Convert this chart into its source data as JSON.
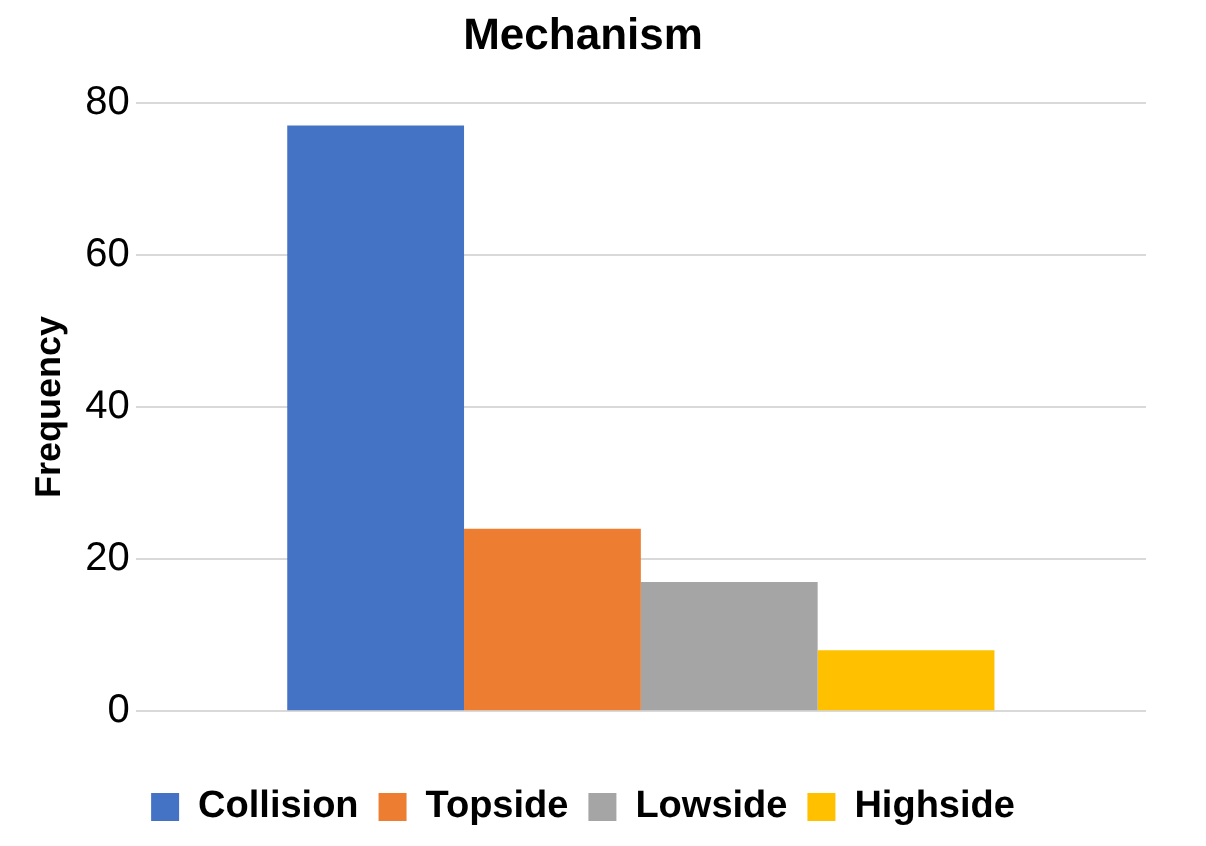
{
  "chart_data": {
    "type": "bar",
    "title": "Mechanism",
    "ylabel": "Frequency",
    "categories": [
      null
    ],
    "series": [
      {
        "name": "Collision",
        "color": "#4472c4",
        "values": [
          77
        ]
      },
      {
        "name": "Topside",
        "color": "#ed7d31",
        "values": [
          24
        ]
      },
      {
        "name": "Lowside",
        "color": "#a5a5a5",
        "values": [
          17
        ]
      },
      {
        "name": "Highside",
        "color": "#ffc000",
        "values": [
          8
        ]
      }
    ],
    "ylim": [
      0,
      80
    ],
    "yticks": [
      0,
      20,
      40,
      60,
      80
    ],
    "grid": "y",
    "legend": "bottom"
  }
}
